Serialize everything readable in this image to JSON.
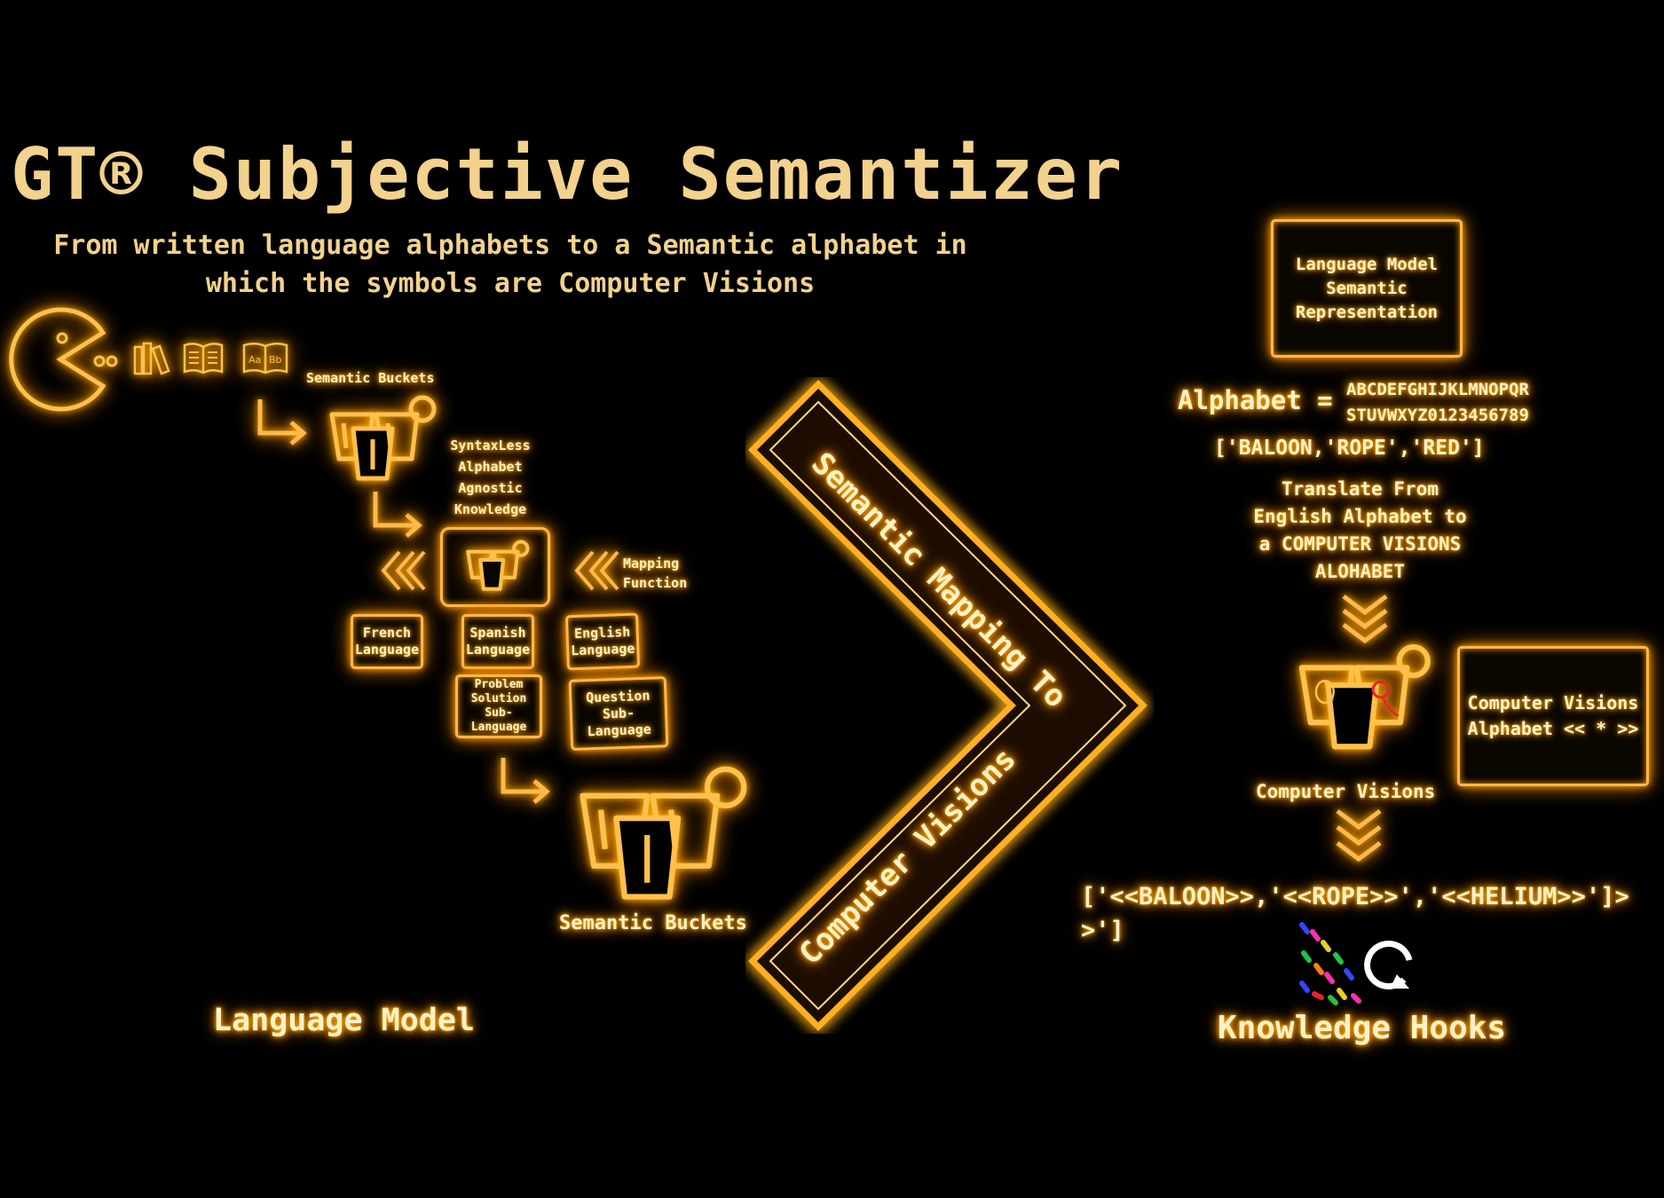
{
  "title": "GT® Subjective Semantizer",
  "subtitle": "From written language alphabets to a Semantic alphabet in which the symbols are Computer Visions",
  "left": {
    "semantic_buckets_top": "Semantic Buckets",
    "syntaxless_label": "SyntaxLess Alphabet Agnostic Knowledge",
    "mapping_function": "Mapping Function",
    "languages": [
      "French Language",
      "Spanish Language",
      "English Language"
    ],
    "sub_languages": [
      "Problem Solution Sub-Language",
      "Question Sub-Language"
    ],
    "semantic_buckets_bottom": "Semantic Buckets",
    "section_label": "Language Model"
  },
  "center": {
    "arrow_upper_label": "Semantic Mapping To",
    "arrow_lower_label": "Computer Visions"
  },
  "right": {
    "lm_box": "Language Model Semantic Representation",
    "alphabet_label": "Alphabet =",
    "alphabet_line1": "ABCDEFGHIJKLMNOPQR",
    "alphabet_line2": "STUVWXYZ0123456789",
    "word_list": "['BALOON,'ROPE','RED']",
    "translate_text": "Translate From English Alphabet to a COMPUTER VISIONS ALOHABET",
    "cv_alphabet_box": "Computer Visions Alphabet << * >>",
    "computer_visions_label": "Computer Visions",
    "cv_list": "['<<BALOON>>,'<<ROPE>>','<<HELIUM>>']>>']",
    "section_label": "Knowledge Hooks"
  },
  "colors": {
    "glow": "#ffb300",
    "text": "#f2d28c",
    "background": "#000000"
  }
}
